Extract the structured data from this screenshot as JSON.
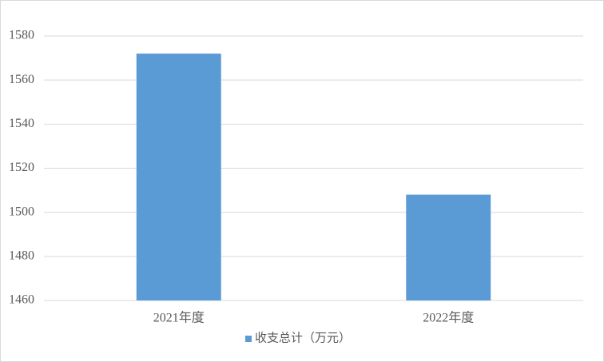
{
  "chart_data": {
    "type": "bar",
    "categories": [
      "2021年度",
      "2022年度"
    ],
    "series": [
      {
        "name": "收支总计（万元）",
        "color": "#5b9bd5",
        "values": [
          1572,
          1508
        ]
      }
    ],
    "ylim": [
      1460,
      1580
    ],
    "yticks": [
      1460,
      1480,
      1500,
      1520,
      1540,
      1560,
      1580
    ],
    "grid": true,
    "legend": "bottom"
  }
}
